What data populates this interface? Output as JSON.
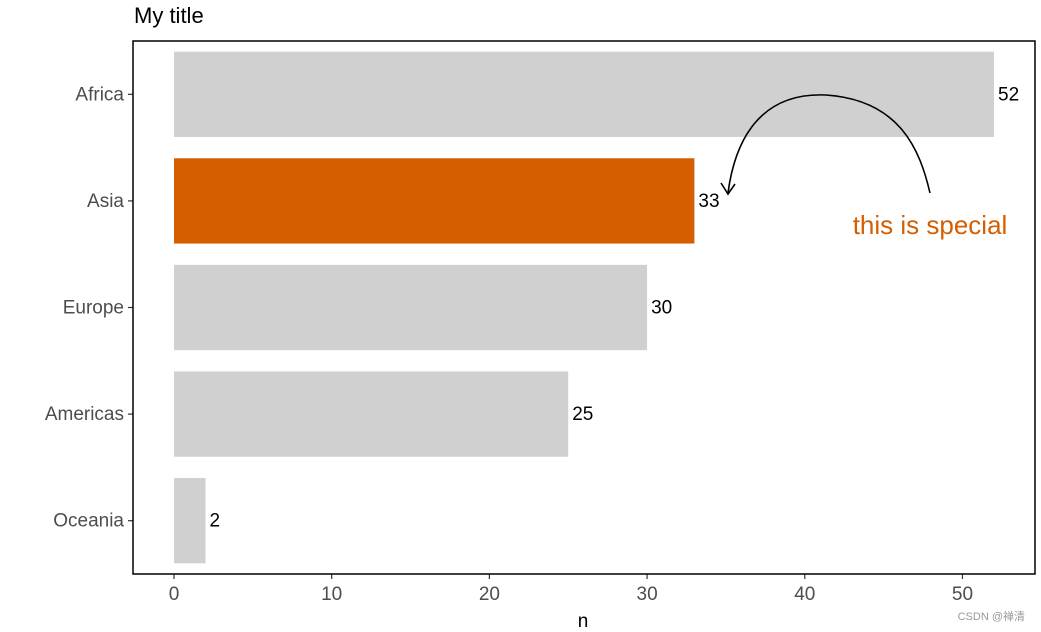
{
  "chart_data": {
    "type": "bar",
    "orientation": "horizontal",
    "title": "My title",
    "x_label": "n",
    "categories": [
      "Africa",
      "Asia",
      "Europe",
      "Americas",
      "Oceania"
    ],
    "values": [
      52,
      33,
      30,
      25,
      2
    ],
    "colors": [
      "#d0d0d0",
      "#d55e00",
      "#d0d0d0",
      "#d0d0d0",
      "#d0d0d0"
    ],
    "xlim": [
      -2.6,
      54.6
    ],
    "xticks": [
      0,
      10,
      20,
      30,
      40,
      50
    ],
    "annotation": {
      "text": "this is special",
      "color": "#d55e00"
    },
    "watermark": "CSDN @禅清"
  }
}
